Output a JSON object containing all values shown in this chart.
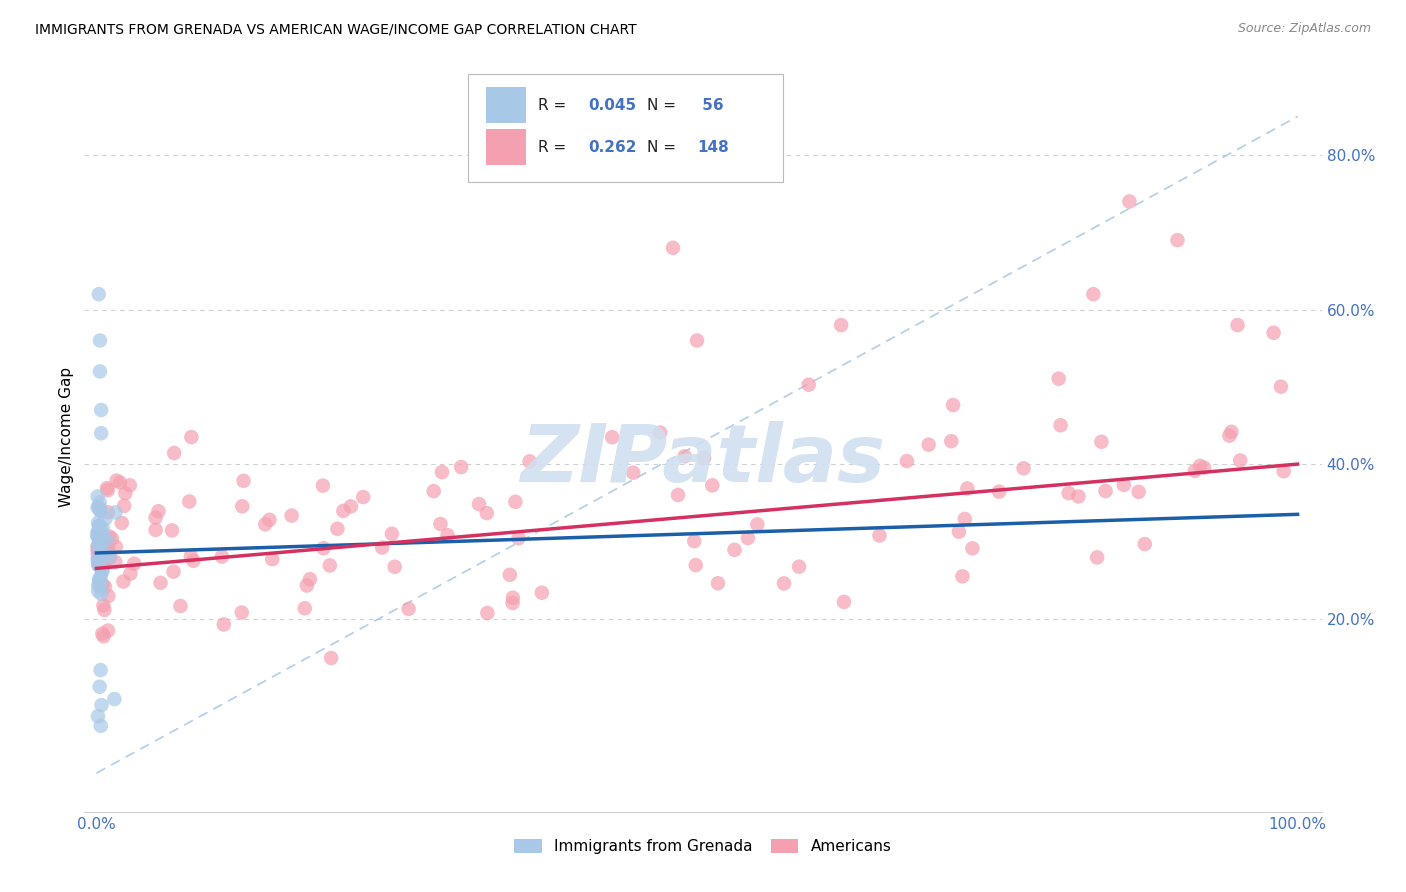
{
  "title": "IMMIGRANTS FROM GRENADA VS AMERICAN WAGE/INCOME GAP CORRELATION CHART",
  "source": "Source: ZipAtlas.com",
  "ylabel": "Wage/Income Gap",
  "legend_label1": "Immigrants from Grenada",
  "legend_label2": "Americans",
  "bg_color": "#ffffff",
  "blue_dot_color": "#a8c8e8",
  "pink_dot_color": "#f4a0b0",
  "blue_line_color": "#1a5fa8",
  "pink_line_color": "#d43060",
  "dashed_line_color": "#a8c8e8",
  "watermark_color": "#d0dff0",
  "axis_tick_color": "#4472c4",
  "grid_color": "#d0d0d0",
  "legend_blue_fill": "#a8c8e8",
  "legend_pink_fill": "#f4a0b0",
  "blue_r": "0.045",
  "blue_n": "56",
  "pink_r": "0.262",
  "pink_n": "148",
  "xlim": [
    -0.01,
    1.02
  ],
  "ylim": [
    -0.05,
    0.92
  ],
  "ytick_vals": [
    0.2,
    0.4,
    0.6,
    0.8
  ],
  "ytick_labels": [
    "20.0%",
    "40.0%",
    "60.0%",
    "80.0%"
  ]
}
